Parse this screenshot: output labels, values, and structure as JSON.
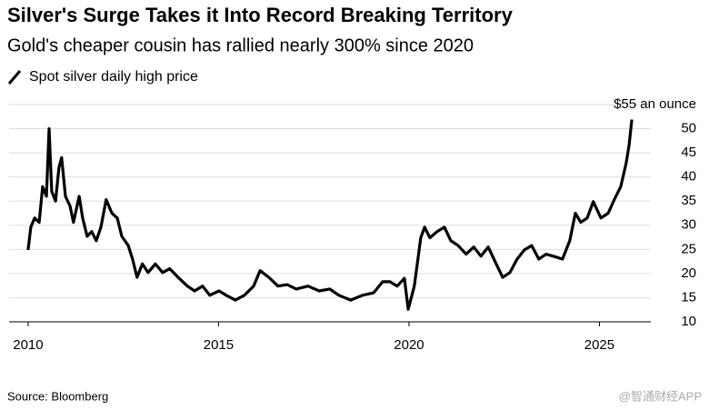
{
  "chart_data": {
    "type": "line",
    "title": "Silver's Surge Takes it Into Record Breaking Territory",
    "subtitle": "Gold's cheaper cousin has rallied nearly 300% since 2020",
    "source": "Source: Bloomberg",
    "watermark": "@智通财经APP",
    "x": [
      2010.0,
      2010.07,
      2010.17,
      2010.29,
      2010.38,
      2010.48,
      2010.55,
      2010.62,
      2010.72,
      2010.81,
      2010.88,
      2010.98,
      2011.1,
      2011.19,
      2011.34,
      2011.43,
      2011.55,
      2011.67,
      2011.79,
      2011.91,
      2012.05,
      2012.2,
      2012.34,
      2012.46,
      2012.63,
      2012.74,
      2012.86,
      2013.0,
      2013.15,
      2013.34,
      2013.53,
      2013.72,
      2013.94,
      2014.18,
      2014.37,
      2014.58,
      2014.77,
      2015.01,
      2015.2,
      2015.44,
      2015.68,
      2015.92,
      2016.09,
      2016.32,
      2016.56,
      2016.8,
      2017.04,
      2017.35,
      2017.64,
      2017.92,
      2018.16,
      2018.47,
      2018.78,
      2019.07,
      2019.31,
      2019.5,
      2019.69,
      2019.88,
      2019.98,
      2020.14,
      2020.31,
      2020.41,
      2020.55,
      2020.74,
      2020.93,
      2021.1,
      2021.29,
      2021.5,
      2021.7,
      2021.89,
      2022.08,
      2022.29,
      2022.46,
      2022.65,
      2022.84,
      2023.03,
      2023.22,
      2023.41,
      2023.6,
      2023.79,
      2024.03,
      2024.22,
      2024.37,
      2024.51,
      2024.68,
      2024.84,
      2025.04,
      2025.23,
      2025.39,
      2025.56,
      2025.7,
      2025.78,
      2025.85
    ],
    "series": [
      {
        "name": "Spot silver daily high price",
        "color": "#000000",
        "values": [
          24.9,
          29.6,
          31.5,
          30.6,
          38,
          36,
          50,
          37,
          35,
          42,
          44,
          36,
          34,
          30.6,
          36,
          31.5,
          27.7,
          28.7,
          26.8,
          29.6,
          35.3,
          32.5,
          31.5,
          27.7,
          25.8,
          23,
          19.2,
          22,
          20.2,
          22,
          20.2,
          21,
          19.2,
          17.4,
          16.4,
          17.4,
          15.5,
          16.4,
          15.5,
          14.5,
          15.5,
          17.4,
          20.6,
          19.2,
          17.4,
          17.7,
          16.8,
          17.4,
          16.4,
          16.8,
          15.5,
          14.5,
          15.5,
          16,
          18.3,
          18.3,
          17.4,
          19,
          12.6,
          17.4,
          27.4,
          29.6,
          27.4,
          28.7,
          29.6,
          26.8,
          25.8,
          24,
          25.5,
          23.6,
          25.5,
          22,
          19.2,
          20.2,
          23,
          24.9,
          25.8,
          23,
          24,
          23.6,
          23,
          26.8,
          32.5,
          30.6,
          31.5,
          34.9,
          31.5,
          32.5,
          35.3,
          38,
          42.8,
          46.6,
          51.9
        ]
      }
    ],
    "xlim": [
      2009.5,
      2026.35
    ],
    "xticks": [
      2010,
      2015,
      2020,
      2025
    ],
    "ylim": [
      10,
      55
    ],
    "yticks": [
      10,
      15,
      20,
      25,
      30,
      35,
      40,
      45,
      50,
      {
        "value": 55,
        "label": "$55 an ounce"
      }
    ],
    "grid": true
  }
}
